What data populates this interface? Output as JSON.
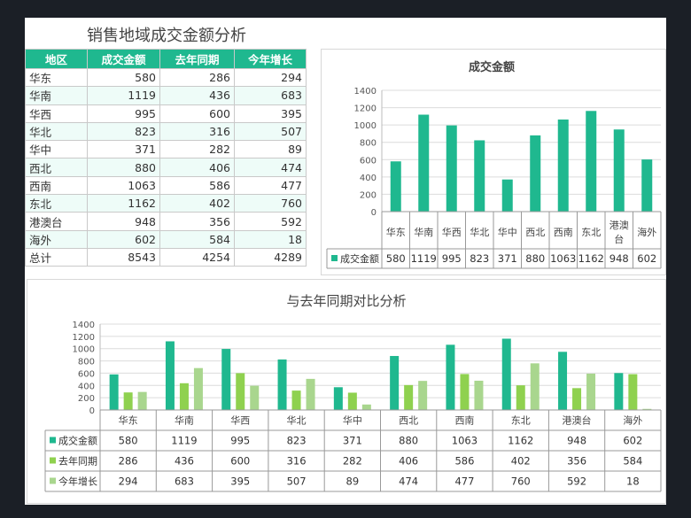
{
  "title": "销售地域成交金额分析",
  "table": {
    "headers": [
      "地区",
      "成交金额",
      "去年同期",
      "今年增长"
    ],
    "rows": [
      [
        "华东",
        "580",
        "286",
        "294"
      ],
      [
        "华南",
        "1119",
        "436",
        "683"
      ],
      [
        "华西",
        "995",
        "600",
        "395"
      ],
      [
        "华北",
        "823",
        "316",
        "507"
      ],
      [
        "华中",
        "371",
        "282",
        "89"
      ],
      [
        "西北",
        "880",
        "406",
        "474"
      ],
      [
        "西南",
        "1063",
        "586",
        "477"
      ],
      [
        "东北",
        "1162",
        "402",
        "760"
      ],
      [
        "港澳台",
        "948",
        "356",
        "592"
      ],
      [
        "海外",
        "602",
        "584",
        "18"
      ],
      [
        "总计",
        "8543",
        "4254",
        "4289"
      ]
    ]
  },
  "chart_data": [
    {
      "type": "bar",
      "title": "成交金额",
      "categories": [
        "华东",
        "华南",
        "华西",
        "华北",
        "华中",
        "西北",
        "西南",
        "东北",
        "港澳台",
        "海外"
      ],
      "series": [
        {
          "name": "成交金额",
          "values": [
            580,
            1119,
            995,
            823,
            371,
            880,
            1063,
            1162,
            948,
            602
          ],
          "color": "#1fb88f"
        }
      ],
      "ylim": [
        0,
        1400
      ],
      "yticks": [
        0,
        200,
        400,
        600,
        800,
        1000,
        1200,
        1400
      ],
      "grid": true,
      "legend": "data-table"
    },
    {
      "type": "bar",
      "title": "与去年同期对比分析",
      "categories": [
        "华东",
        "华南",
        "华西",
        "华北",
        "华中",
        "西北",
        "西南",
        "东北",
        "港澳台",
        "海外"
      ],
      "series": [
        {
          "name": "成交金额",
          "values": [
            580,
            1119,
            995,
            823,
            371,
            880,
            1063,
            1162,
            948,
            602
          ],
          "color": "#1fb88f"
        },
        {
          "name": "去年同期",
          "values": [
            286,
            436,
            600,
            316,
            282,
            406,
            586,
            402,
            356,
            584
          ],
          "color": "#8fd14f"
        },
        {
          "name": "今年增长",
          "values": [
            294,
            683,
            395,
            507,
            89,
            474,
            477,
            760,
            592,
            18
          ],
          "color": "#a9d68e"
        }
      ],
      "ylim": [
        0,
        1400
      ],
      "yticks": [
        0,
        200,
        400,
        600,
        800,
        1000,
        1200,
        1400
      ],
      "grid": true,
      "legend": "data-table"
    }
  ]
}
